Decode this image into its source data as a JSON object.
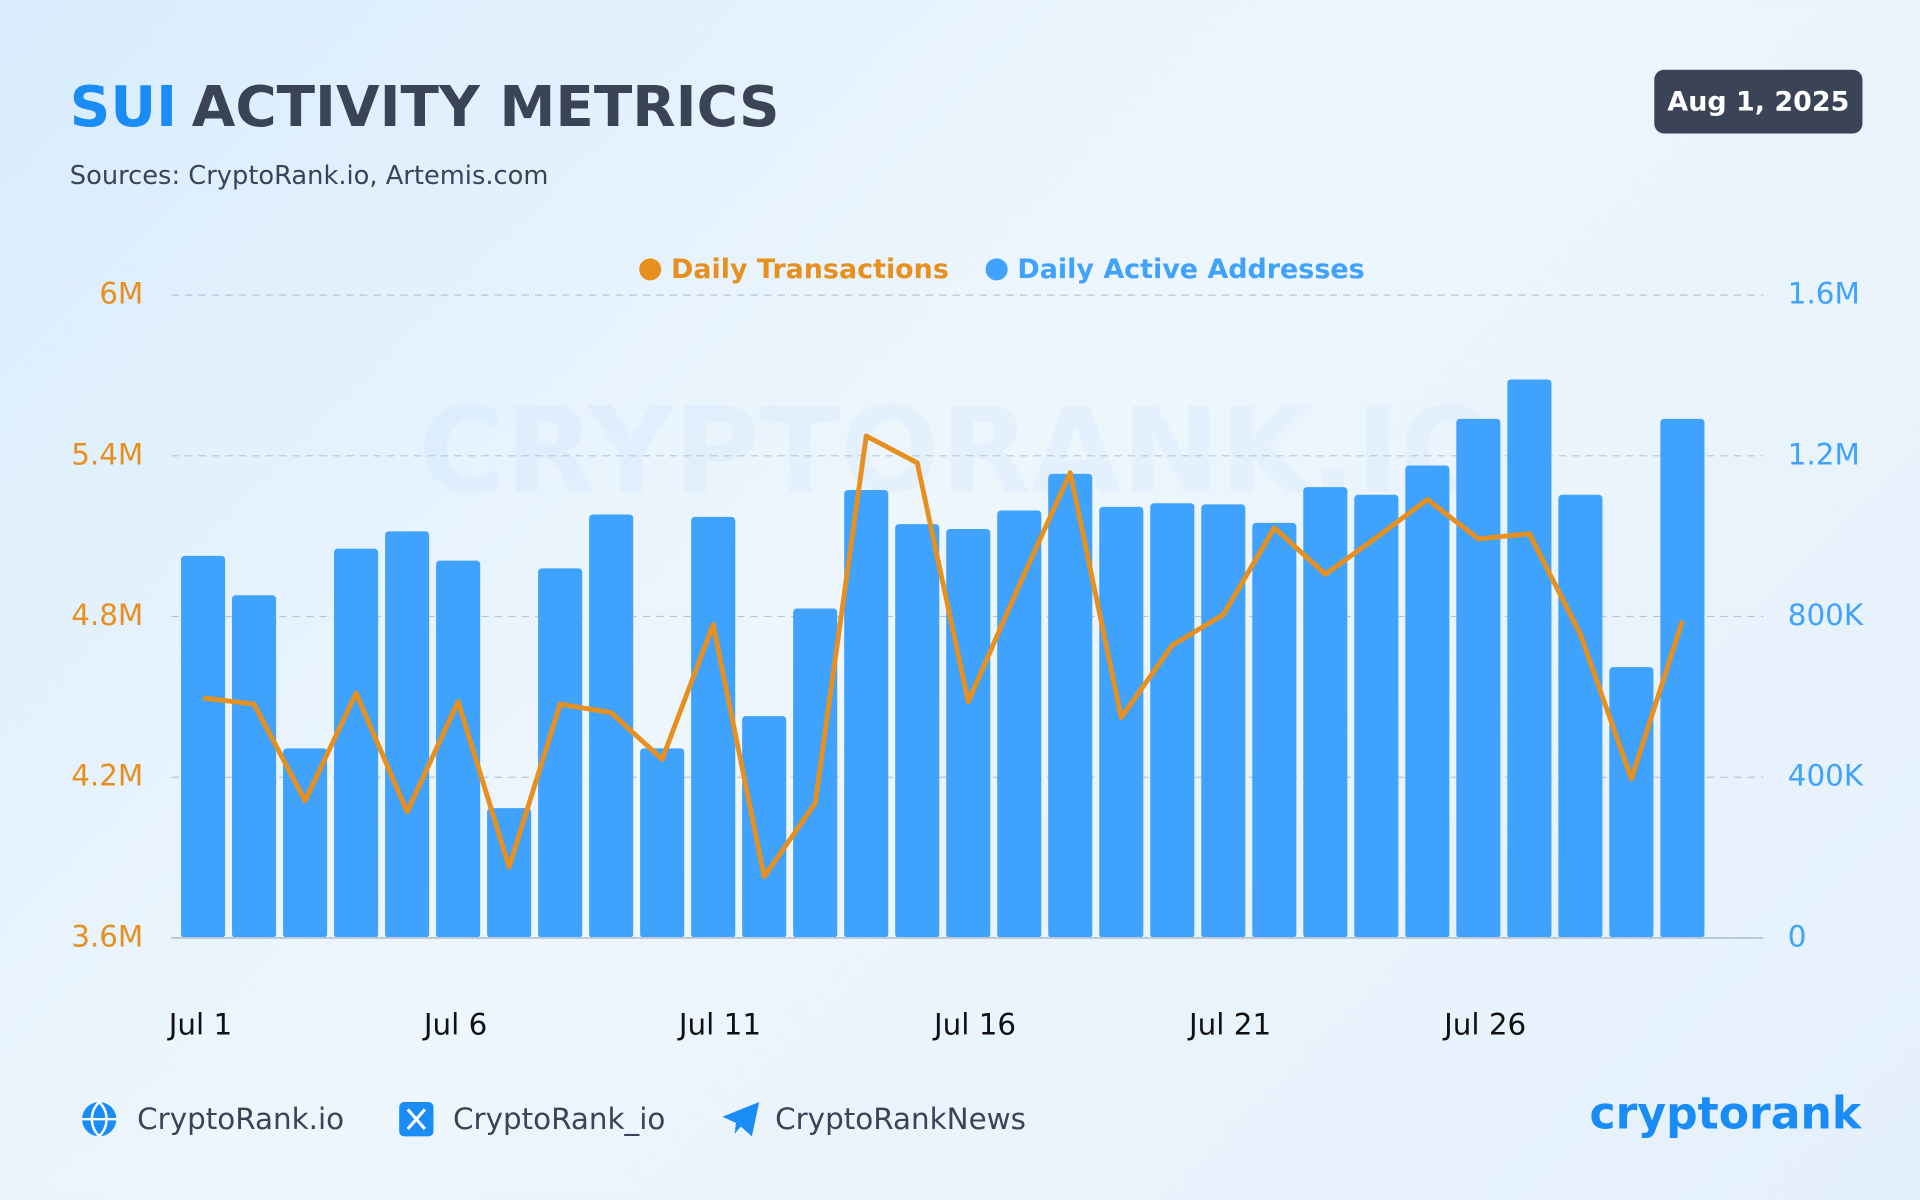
{
  "header": {
    "title_highlight": "SUI",
    "title": "ACTIVITY METRICS",
    "subtitle": "Sources: CryptoRank.io, Artemis.com",
    "date": "Aug 1, 2025"
  },
  "watermark": "CRYPTORANK.IO",
  "chart_data": {
    "type": "bar-line",
    "categories": [
      "Jul 1",
      null,
      null,
      null,
      null,
      "Jul 6",
      null,
      null,
      null,
      null,
      "Jul 11",
      null,
      null,
      null,
      null,
      "Jul 16",
      null,
      null,
      null,
      null,
      "Jul 21",
      null,
      null,
      null,
      null,
      "Jul 26",
      null,
      null,
      null,
      null
    ],
    "series": [
      {
        "name": "Daily Transactions",
        "color": "#e8901f",
        "type": "line",
        "axis": "y",
        "values": [
          4496000,
          4473000,
          4112000,
          4514000,
          4071000,
          4482000,
          3865000,
          4473000,
          4441000,
          4267000,
          4770000,
          3829000,
          4103000,
          5474000,
          5374000,
          4482000,
          4917000,
          5337000,
          4423000,
          4693000,
          4807000,
          5131000,
          4958000,
          5095000,
          5237000,
          5090000,
          5109000,
          4734000,
          4194000,
          4784000
        ]
      },
      {
        "name": "Daily Active Addresses",
        "color": "#3fa2fc",
        "type": "bar",
        "axis": "y2",
        "values": [
          951000,
          853000,
          472000,
          969000,
          1012000,
          939000,
          323000,
          920000,
          1054000,
          472000,
          1048000,
          552000,
          820000,
          1115000,
          1030000,
          1018000,
          1064000,
          1155000,
          1073000,
          1082000,
          1079000,
          1033000,
          1122000,
          1103000,
          1176000,
          1292000,
          1390000,
          1103000,
          674000,
          1292000
        ]
      }
    ],
    "ylim": [
      3600000,
      6000000
    ],
    "yticks": [
      {
        "value": 3600000,
        "label": "3.6M"
      },
      {
        "value": 4200000,
        "label": "4.2M"
      },
      {
        "value": 4800000,
        "label": "4.8M"
      },
      {
        "value": 5400000,
        "label": "5.4M"
      },
      {
        "value": 6000000,
        "label": "6M"
      }
    ],
    "y2lim": [
      0,
      1600000
    ],
    "y2ticks": [
      0,
      {
        "value": 400000,
        "label": "400K"
      },
      {
        "value": 800000,
        "label": "800K"
      },
      {
        "value": 1200000,
        "label": "1.2M"
      },
      {
        "value": 1600000,
        "label": "1.6M"
      }
    ],
    "grid": true
  },
  "footer": {
    "links": [
      "CryptoRank.io",
      "CryptoRank_io",
      "CryptoRankNews"
    ],
    "logo": "cryptorank"
  }
}
